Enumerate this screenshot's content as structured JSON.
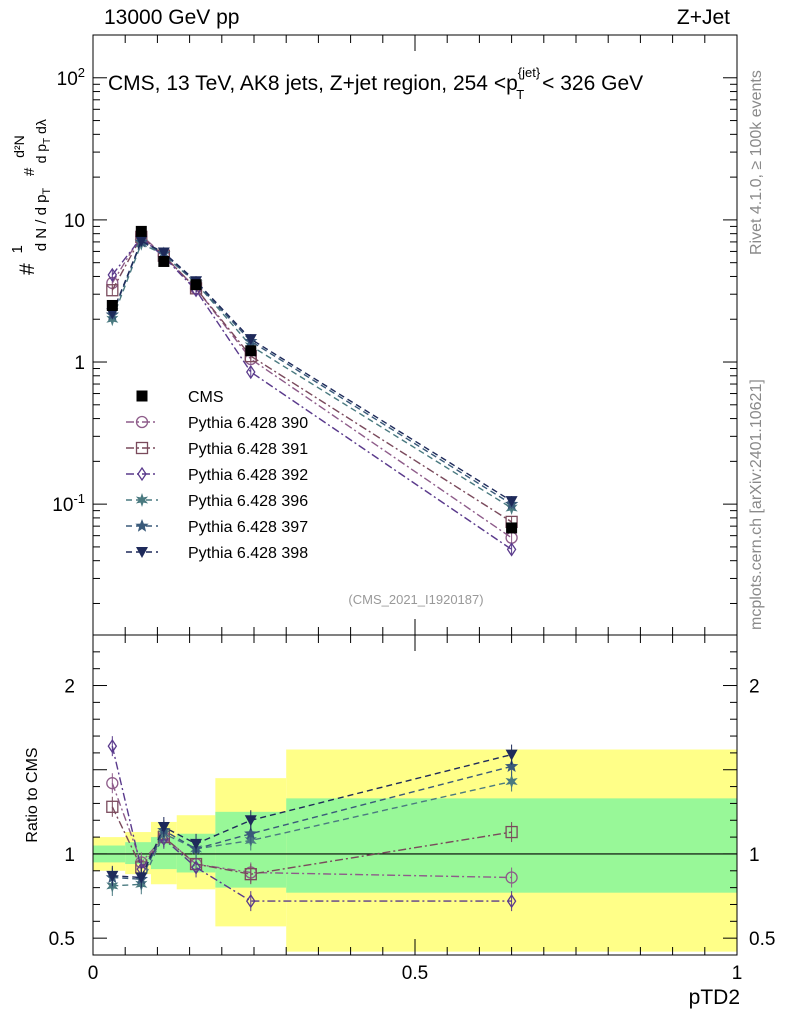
{
  "header": {
    "left": "13000 GeV pp",
    "right": "Z+Jet"
  },
  "side": {
    "rivet": "Rivet 4.1.0, ≥ 100k events",
    "mcplots": "mcplots.cern.ch [arXiv:2401.10621]"
  },
  "chart_data": {
    "type": "line",
    "title": "CMS, 13 TeV, AK8 jets, Z+jet region, 254 <p_T^{jet}< 326 GeV",
    "title_parts": {
      "main": "CMS, 13 TeV, AK8 jets, Z+jet region, 254 <p",
      "sup": "{jet}",
      "sub": "T",
      "tail": "< 326 GeV"
    },
    "analysis_tag": "(CMS_2021_I1920187)",
    "xlabel": "pTD2",
    "ylabel_ratio": "Ratio to CMS",
    "xlim": [
      0,
      1
    ],
    "ylim_main": [
      0.012,
      200
    ],
    "ylim_ratio": [
      0.4,
      2.3
    ],
    "x_ticks": [
      "0",
      "0.5",
      "1"
    ],
    "y_ticks_main": [
      "10^{-1}",
      "1",
      "10",
      "10^{2}"
    ],
    "y_ticks_ratio": [
      "0.5",
      "1",
      "2"
    ],
    "x": [
      0.03,
      0.075,
      0.11,
      0.16,
      0.245,
      0.65
    ],
    "bin_edges": [
      0,
      0.05,
      0.09,
      0.13,
      0.19,
      0.3,
      1.0
    ],
    "band_yellow": [
      [
        0.9,
        1.1
      ],
      [
        0.88,
        1.13
      ],
      [
        0.82,
        1.19
      ],
      [
        0.79,
        1.23
      ],
      [
        0.57,
        1.45
      ],
      [
        0.42,
        1.62
      ]
    ],
    "band_green": [
      [
        0.95,
        1.05
      ],
      [
        0.94,
        1.07
      ],
      [
        0.91,
        1.1
      ],
      [
        0.89,
        1.12
      ],
      [
        0.8,
        1.25
      ],
      [
        0.77,
        1.33
      ]
    ],
    "series": [
      {
        "name": "CMS",
        "marker": "square-filled",
        "color": "#000000",
        "values": [
          2.5,
          8.3,
          5.1,
          3.5,
          1.2,
          0.068
        ]
      },
      {
        "name": "Pythia 6.428 390",
        "marker": "circle",
        "color": "#8e5c8a",
        "dash": "dashdot",
        "values": [
          3.6,
          7.8,
          5.6,
          3.3,
          1.05,
          0.058
        ]
      },
      {
        "name": "Pythia 6.428 391",
        "marker": "square",
        "color": "#7a4a5c",
        "dash": "dashdot",
        "values": [
          3.2,
          7.6,
          5.6,
          3.3,
          1.1,
          0.075
        ]
      },
      {
        "name": "Pythia 6.428 392",
        "marker": "diamond",
        "color": "#5a3a8c",
        "dash": "dashdot",
        "values": [
          4.1,
          7.5,
          5.5,
          3.2,
          0.85,
          0.048
        ]
      },
      {
        "name": "Pythia 6.428 396",
        "marker": "star6",
        "color": "#4a7a80",
        "dash": "dash",
        "values": [
          2.0,
          6.8,
          5.7,
          3.6,
          1.3,
          0.094
        ]
      },
      {
        "name": "Pythia 6.428 397",
        "marker": "star",
        "color": "#3a5a7a",
        "dash": "dash",
        "values": [
          2.15,
          7.0,
          5.8,
          3.6,
          1.4,
          0.1
        ]
      },
      {
        "name": "Pythia 6.428 398",
        "marker": "triangle-down",
        "color": "#1e2a5a",
        "dash": "dash",
        "values": [
          2.2,
          7.1,
          5.9,
          3.7,
          1.45,
          0.105
        ]
      }
    ],
    "ratios": [
      [
        1.42,
        0.95,
        1.1,
        0.94,
        0.89,
        0.86
      ],
      [
        1.28,
        0.92,
        1.1,
        0.94,
        0.88,
        1.13
      ],
      [
        1.64,
        0.91,
        1.09,
        0.92,
        0.72,
        0.72
      ],
      [
        0.81,
        0.82,
        1.12,
        1.03,
        1.08,
        1.43
      ],
      [
        0.86,
        0.85,
        1.14,
        1.03,
        1.12,
        1.52
      ],
      [
        0.87,
        0.86,
        1.16,
        1.06,
        1.2,
        1.59
      ]
    ]
  }
}
